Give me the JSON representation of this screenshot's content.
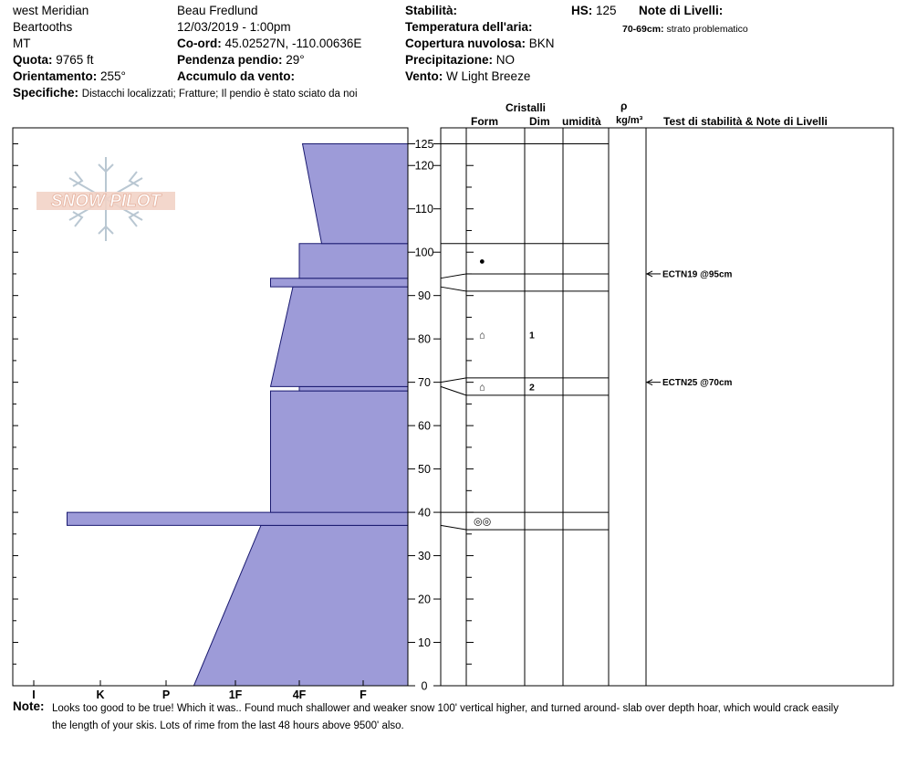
{
  "header": {
    "location": "west Meridian",
    "range": "Beartooths",
    "state": "MT",
    "elevation_label": "Quota:",
    "elevation_value": "9765 ft",
    "aspect_label": "Orientamento:",
    "aspect_value": "255°",
    "observer": "Beau  Fredlund",
    "datetime": "12/03/2019 - 1:00pm",
    "coord_label": "Co-ord:",
    "coord_value": "45.02527N, -110.00636E",
    "slope_label": "Pendenza pendio:",
    "slope_value": "29°",
    "windload_label": "Accumulo da vento:",
    "stability_label": "Stabilità:",
    "airtemp_label": "Temperatura dell'aria:",
    "sky_label": "Copertura nuvolosa:",
    "sky_value": "BKN",
    "precip_label": "Precipitazione:",
    "precip_value": "NO",
    "wind_label": "Vento:",
    "wind_value": "W Light Breeze",
    "hs_label": "HS:",
    "hs_value": "125",
    "layer_notes_label": "Note di Livelli:",
    "layer_note_range": "70-69cm:",
    "layer_note_text": "strato problematico",
    "specifics_label": "Specifiche:",
    "specifics_value": "Distacchi localizzati;  Fratture;  Il pendio è stato sciato da noi",
    "notes_label": "Note:",
    "notes_line1": "Looks too good to be true! Which it was..  Found much shallower and weaker snow 100' vertical higher, and turned around- slab over depth hoar, which would crack easily",
    "notes_line2": "the length of your skis.  Lots of rime from the last 48 hours above 9500' also."
  },
  "logo": {
    "text": "SNOW PILOT",
    "icon": "snowflake-icon"
  },
  "columns": {
    "crystals": "Cristalli",
    "form": "Form",
    "size": "Dim",
    "moisture": "umidità",
    "rho": "ρ",
    "density_unit": "kg/m³",
    "tests_notes": "Test di stabilità & Note di Livelli"
  },
  "colors": {
    "hardness_fill": "#9d9bd8",
    "outline": "#1a1a70",
    "axis": "#000000"
  },
  "chart_data": {
    "type": "area",
    "description_axis_y": "height above ground (cm)",
    "ylim": [
      0,
      125
    ],
    "y_ticks": [
      0,
      10,
      20,
      30,
      40,
      50,
      60,
      70,
      80,
      90,
      100,
      110,
      120,
      125
    ],
    "x_ticks": [
      "I",
      "K",
      "P",
      "1F",
      "4F",
      "F"
    ],
    "x_scale": {
      "I": 5,
      "K": 4,
      "P": 3,
      "1F": 2,
      "4F": 1,
      "F": 0
    },
    "hardness_profile": [
      {
        "bottom": 0,
        "top": 37,
        "hardness_bottom": 2.6,
        "hardness_top": 1.6
      },
      {
        "bottom": 37,
        "top": 40,
        "hardness_bottom": 4.5,
        "hardness_top": 4.5
      },
      {
        "bottom": 40,
        "top": 68,
        "hardness_bottom": 1.45,
        "hardness_top": 1.45
      },
      {
        "bottom": 68,
        "top": 69,
        "hardness_bottom": 1,
        "hardness_top": 1
      },
      {
        "bottom": 69,
        "top": 92,
        "hardness_bottom": 1.45,
        "hardness_top": 1.1
      },
      {
        "bottom": 92,
        "top": 94,
        "hardness_bottom": 1.45,
        "hardness_top": 1.45
      },
      {
        "bottom": 94,
        "top": 102,
        "hardness_bottom": 1,
        "hardness_top": 1
      },
      {
        "bottom": 102,
        "top": 125,
        "hardness_bottom": 0.65,
        "hardness_top": 0.95
      }
    ],
    "layer_boundaries": [
      102,
      95,
      91,
      71,
      67,
      40,
      36
    ],
    "grain_forms": [
      {
        "height": 98,
        "symbol": "graupel",
        "glyph": "●"
      },
      {
        "height": 81,
        "symbol": "faceted",
        "glyph": "⌂"
      },
      {
        "height": 69,
        "symbol": "faceted",
        "glyph": "⌂"
      },
      {
        "height": 38,
        "symbol": "melt-freeze",
        "glyph": "◎◎"
      }
    ],
    "grain_sizes": [
      {
        "height": 81,
        "value": "1"
      },
      {
        "height": 69,
        "value": "2"
      }
    ],
    "tests": [
      {
        "height": 95,
        "label": "ECTN19 @95cm"
      },
      {
        "height": 70,
        "label": "ECTN25 @70cm"
      }
    ]
  }
}
